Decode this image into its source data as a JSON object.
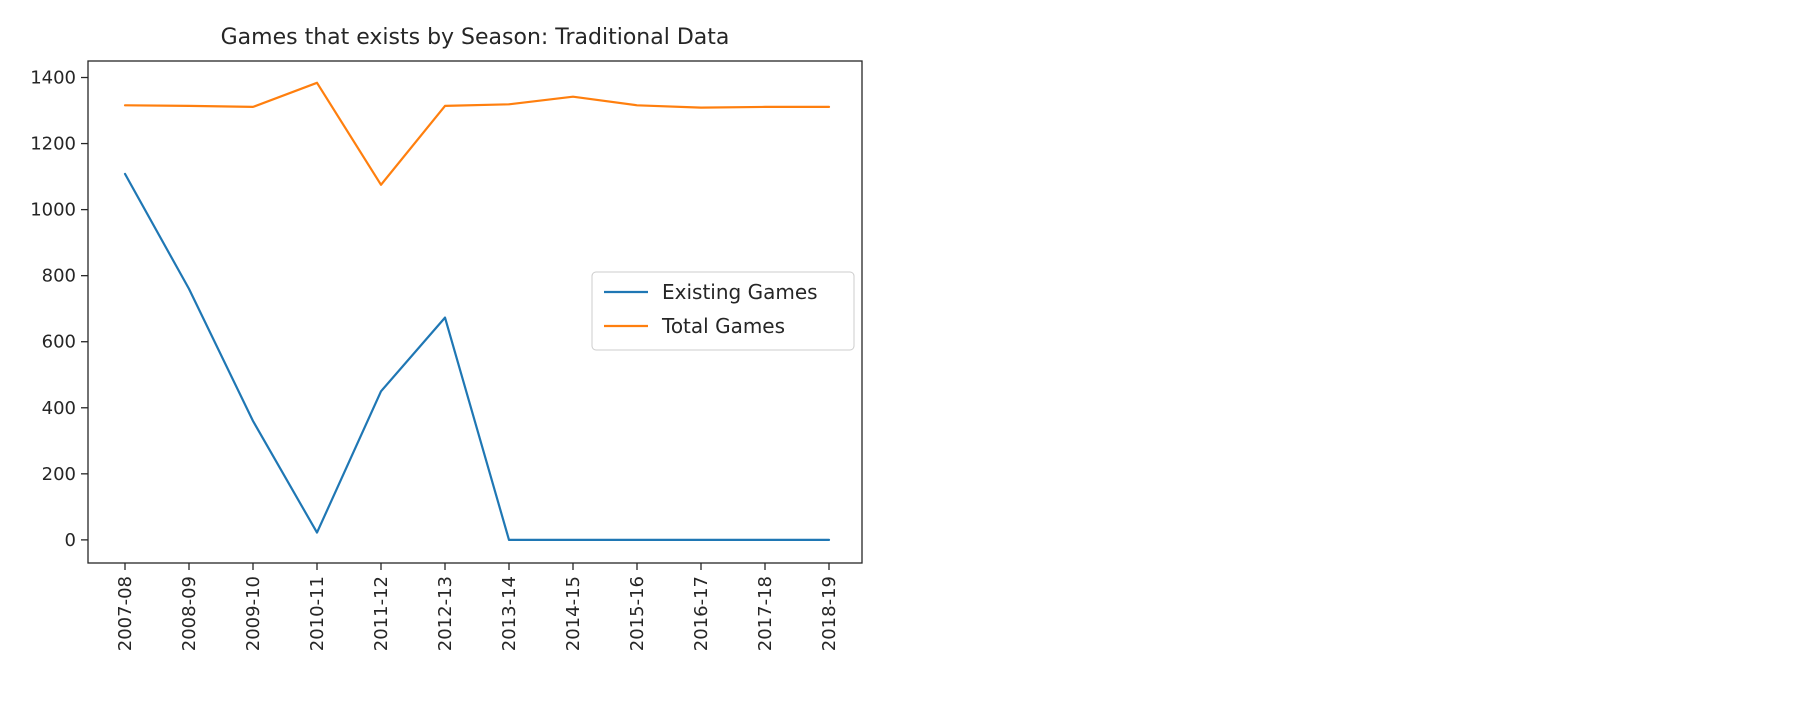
{
  "chart_data": {
    "type": "line",
    "title": "Games that exists by Season: Traditional Data",
    "xlabel": "",
    "ylabel": "",
    "categories": [
      "2007-08",
      "2008-09",
      "2009-10",
      "2010-11",
      "2011-12",
      "2012-13",
      "2013-14",
      "2014-15",
      "2015-16",
      "2016-17",
      "2017-18",
      "2018-19"
    ],
    "series": [
      {
        "name": "Existing Games",
        "color": "#1f77b4",
        "values": [
          1108,
          760,
          360,
          22,
          450,
          673,
          0,
          0,
          0,
          0,
          0,
          0
        ]
      },
      {
        "name": "Total Games",
        "color": "#ff7f0e",
        "values": [
          1316,
          1314,
          1311,
          1384,
          1075,
          1314,
          1319,
          1342,
          1316,
          1309,
          1311,
          1311
        ]
      }
    ],
    "yticks": [
      0,
      200,
      400,
      600,
      800,
      1000,
      1200,
      1400
    ],
    "ylim": [
      -70,
      1450
    ],
    "grid": false,
    "legend_position": "center-right"
  }
}
